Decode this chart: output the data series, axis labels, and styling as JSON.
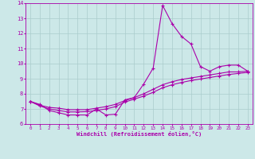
{
  "title": "",
  "xlabel": "Windchill (Refroidissement éolien,°C)",
  "bg_color": "#cce8e8",
  "line_color": "#aa00aa",
  "grid_color": "#aacccc",
  "xlim": [
    -0.5,
    23.5
  ],
  "ylim": [
    6,
    14
  ],
  "xticks": [
    0,
    1,
    2,
    3,
    4,
    5,
    6,
    7,
    8,
    9,
    10,
    11,
    12,
    13,
    14,
    15,
    16,
    17,
    18,
    19,
    20,
    21,
    22,
    23
  ],
  "yticks": [
    6,
    7,
    8,
    9,
    10,
    11,
    12,
    13,
    14
  ],
  "line1_x": [
    0,
    1,
    2,
    3,
    4,
    5,
    6,
    7,
    8,
    9,
    10,
    11,
    12,
    13,
    14,
    15,
    16,
    17,
    18,
    19,
    20,
    21,
    22,
    23
  ],
  "line1_y": [
    7.5,
    7.3,
    6.9,
    6.75,
    6.6,
    6.6,
    6.6,
    7.0,
    6.6,
    6.65,
    7.6,
    7.75,
    8.65,
    9.7,
    13.85,
    12.65,
    11.8,
    11.3,
    9.8,
    9.5,
    9.8,
    9.9,
    9.9,
    9.5
  ],
  "line2_x": [
    0,
    1,
    2,
    3,
    4,
    5,
    6,
    7,
    8,
    9,
    10,
    11,
    12,
    13,
    14,
    15,
    16,
    17,
    18,
    19,
    20,
    21,
    22,
    23
  ],
  "line2_y": [
    7.5,
    7.25,
    7.1,
    7.05,
    6.95,
    6.95,
    6.95,
    7.05,
    7.15,
    7.3,
    7.55,
    7.75,
    8.0,
    8.3,
    8.6,
    8.8,
    8.95,
    9.05,
    9.15,
    9.25,
    9.35,
    9.45,
    9.45,
    9.5
  ],
  "line3_x": [
    0,
    1,
    2,
    3,
    4,
    5,
    6,
    7,
    8,
    9,
    10,
    11,
    12,
    13,
    14,
    15,
    16,
    17,
    18,
    19,
    20,
    21,
    22,
    23
  ],
  "line3_y": [
    7.5,
    7.2,
    7.0,
    6.9,
    6.8,
    6.8,
    6.82,
    6.9,
    7.0,
    7.15,
    7.45,
    7.65,
    7.85,
    8.1,
    8.4,
    8.6,
    8.75,
    8.88,
    8.98,
    9.08,
    9.18,
    9.28,
    9.35,
    9.42
  ]
}
